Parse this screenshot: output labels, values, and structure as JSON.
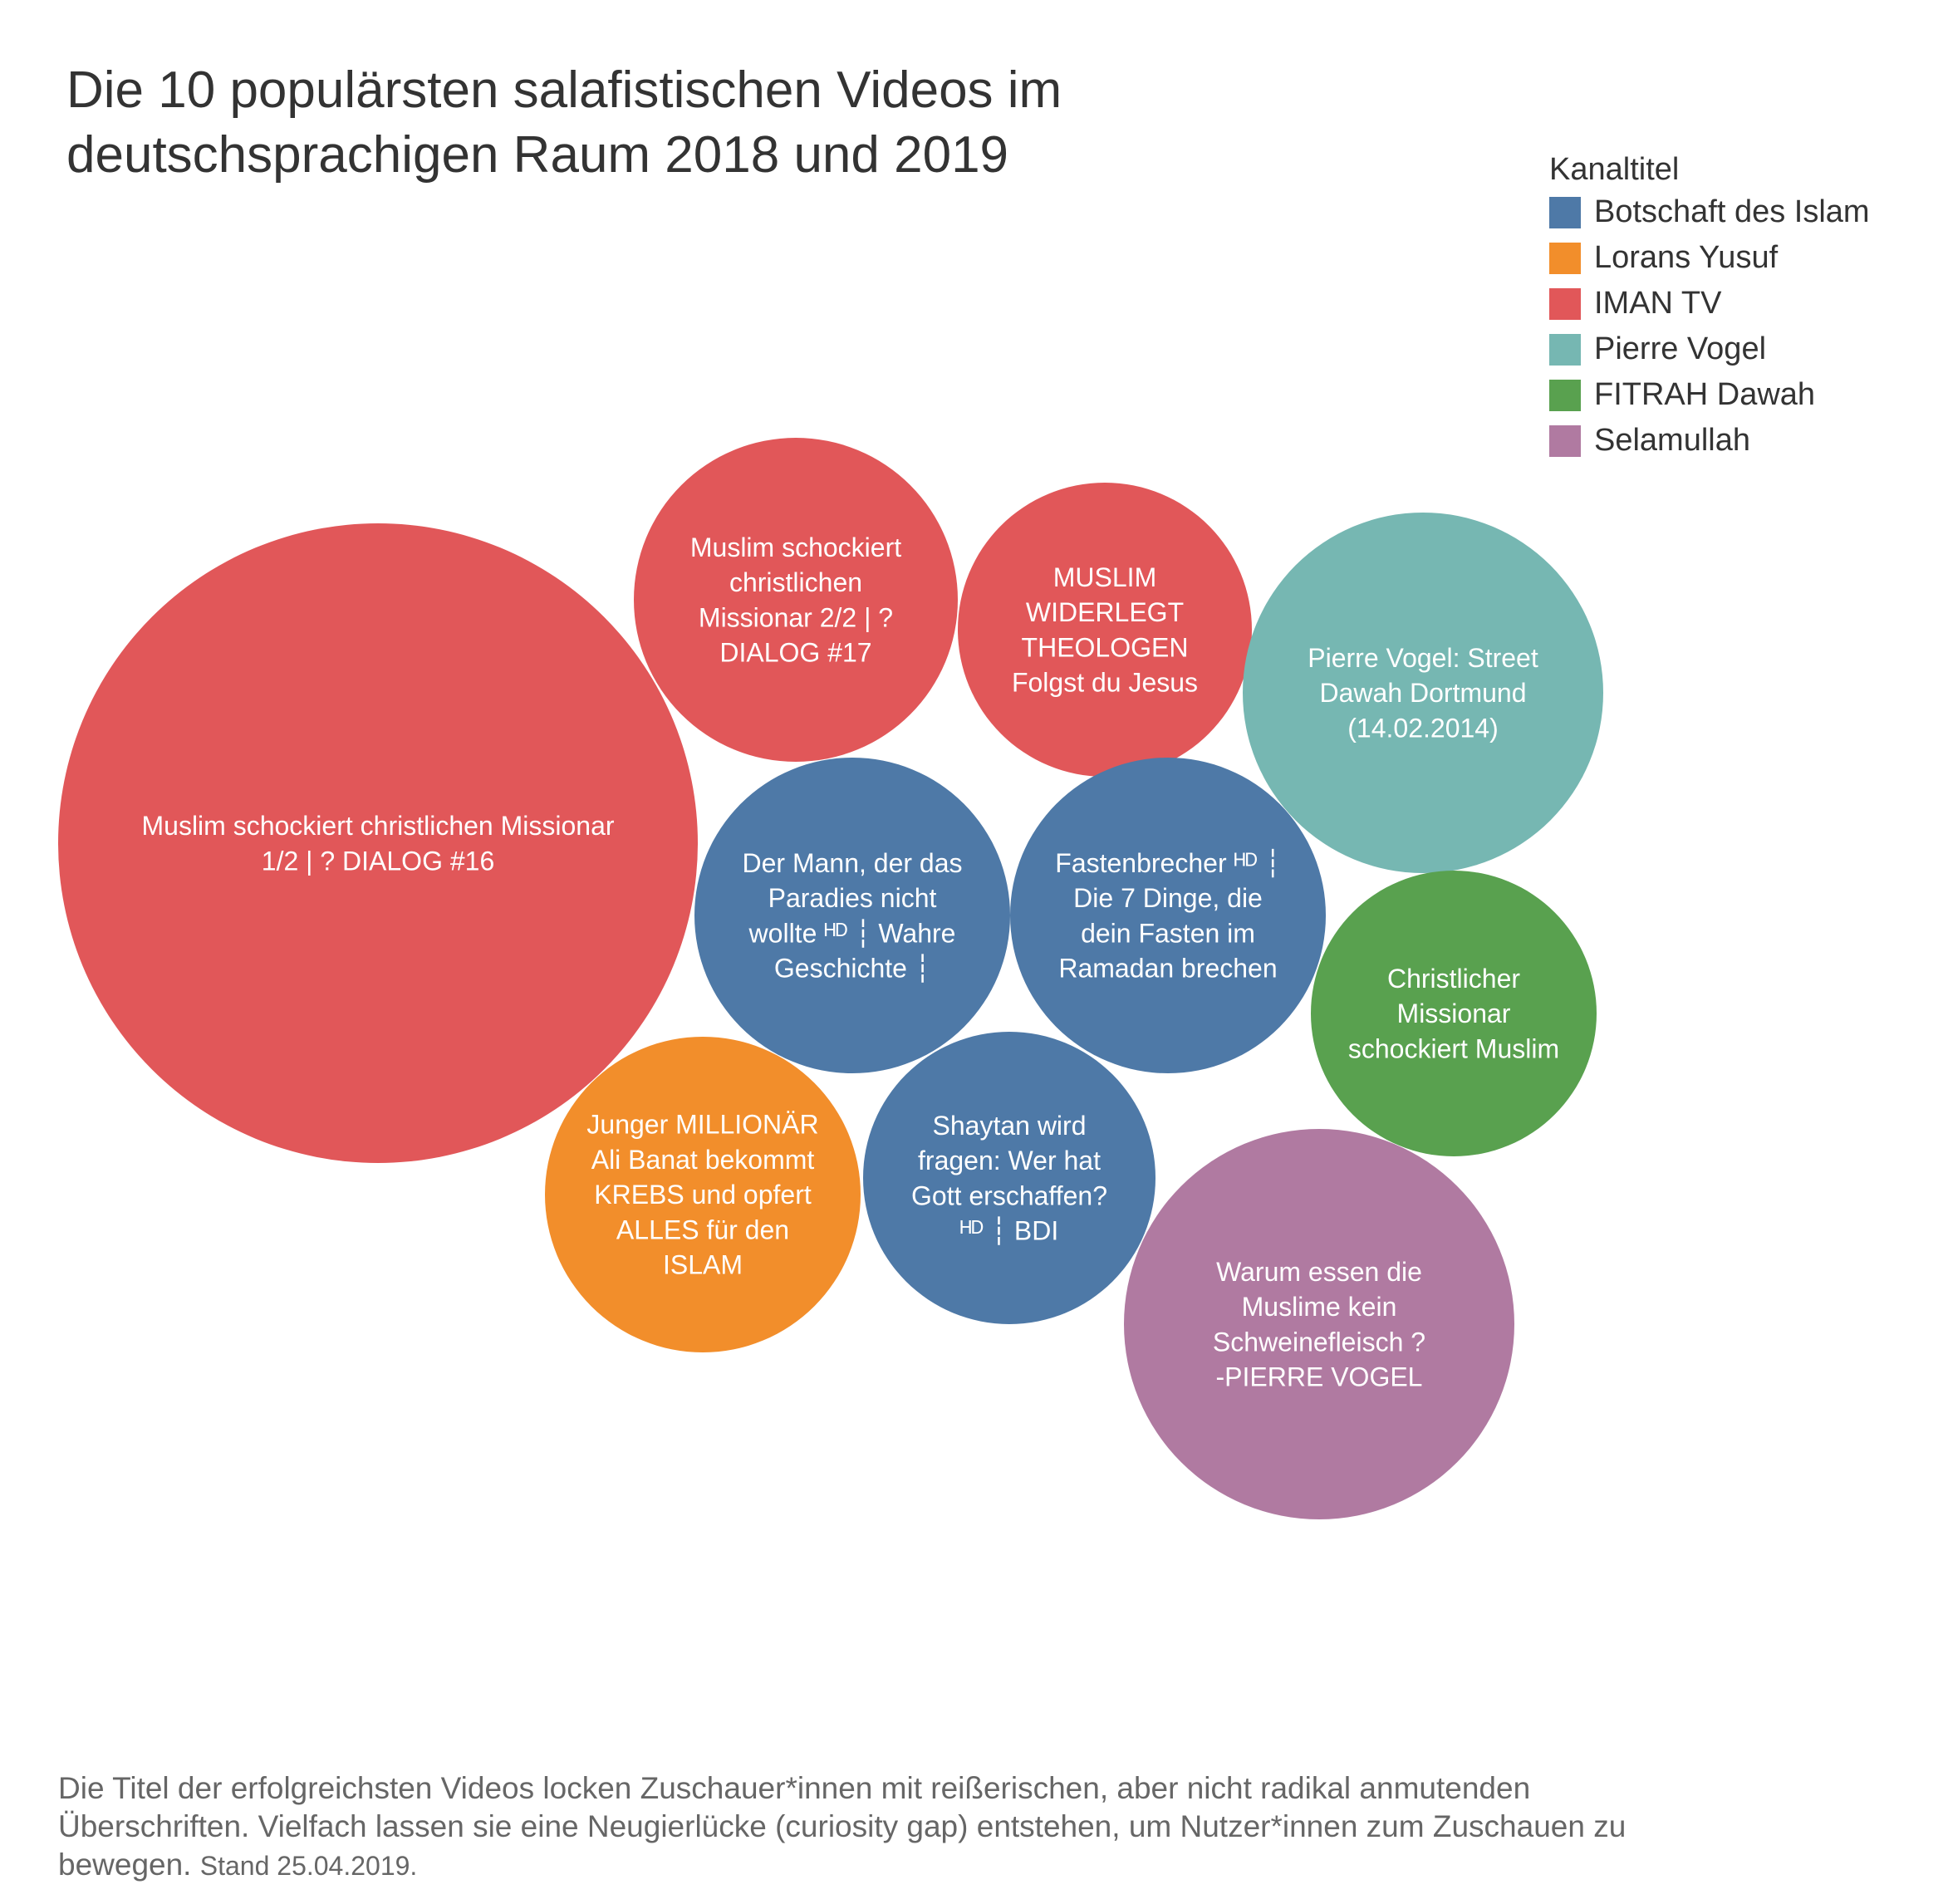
{
  "title_lines": [
    "Die 10 populärsten salafistischen Videos im",
    "deutschsprachigen Raum 2018 und 2019"
  ],
  "legend": {
    "title": "Kanaltitel",
    "items": [
      {
        "label": "Botschaft des Islam",
        "color": "#4e79a7"
      },
      {
        "label": "Lorans Yusuf",
        "color": "#f28e2b"
      },
      {
        "label": "IMAN TV",
        "color": "#e15759"
      },
      {
        "label": "Pierre Vogel",
        "color": "#76b7b2"
      },
      {
        "label": "FITRAH Dawah",
        "color": "#59a14f"
      },
      {
        "label": "Selamullah",
        "color": "#b07aa1"
      }
    ]
  },
  "chart_data": {
    "type": "bubble",
    "size_encoding": "views (relative, unlabeled)",
    "bubbles": [
      {
        "channel": "IMAN TV",
        "lines": [
          "Muslim schockiert christlichen Missionar",
          "1/2 | ? DIALOG #16"
        ],
        "size": 100
      },
      {
        "channel": "IMAN TV",
        "lines": [
          "Muslim schockiert",
          "christlichen",
          "Missionar 2/2 | ?",
          "DIALOG #17"
        ],
        "size": 26
      },
      {
        "channel": "IMAN TV",
        "lines": [
          "MUSLIM",
          "WIDERLEGT",
          "THEOLOGEN",
          "Folgst du Jesus"
        ],
        "size": 21
      },
      {
        "channel": "Pierre Vogel",
        "lines": [
          "Pierre Vogel: Street",
          "Dawah Dortmund",
          "(14.02.2014)"
        ],
        "size": 31
      },
      {
        "channel": "Botschaft des Islam",
        "lines": [
          "Der Mann, der das",
          "Paradies nicht",
          "wollte ᴴᴰ ┆ Wahre",
          "Geschichte ┆"
        ],
        "size": 24
      },
      {
        "channel": "Botschaft des Islam",
        "lines": [
          "Fastenbrecher ᴴᴰ ┆",
          "Die 7 Dinge, die",
          "dein Fasten im",
          "Ramadan brechen"
        ],
        "size": 25
      },
      {
        "channel": "FITRAH Dawah",
        "lines": [
          "Christlicher",
          "Missionar",
          "schockiert Muslim"
        ],
        "size": 20
      },
      {
        "channel": "Lorans Yusuf",
        "lines": [
          "Junger MILLIONÄR",
          "Ali Banat bekommt",
          "KREBS und opfert",
          "ALLES für den",
          "ISLAM"
        ],
        "size": 25
      },
      {
        "channel": "Botschaft des Islam",
        "lines": [
          "Shaytan wird",
          "fragen: Wer hat",
          "Gott erschaffen?",
          "ᴴᴰ ┆ BDI"
        ],
        "size": 21
      },
      {
        "channel": "Selamullah",
        "lines": [
          "Warum essen die",
          "Muslime kein",
          "Schweinefleisch ?",
          "-PIERRE VOGEL"
        ],
        "size": 37
      }
    ]
  },
  "footnote": {
    "text": "Die Titel der erfolgreichsten Videos locken Zuschauer*innen mit reißerischen, aber nicht radikal anmutenden Überschriften. Vielfach lassen sie eine Neugierlücke (curiosity gap) entstehen, um Nutzer*innen zum Zuschauen zu bewegen.",
    "stand": "Stand 25.04.2019."
  }
}
